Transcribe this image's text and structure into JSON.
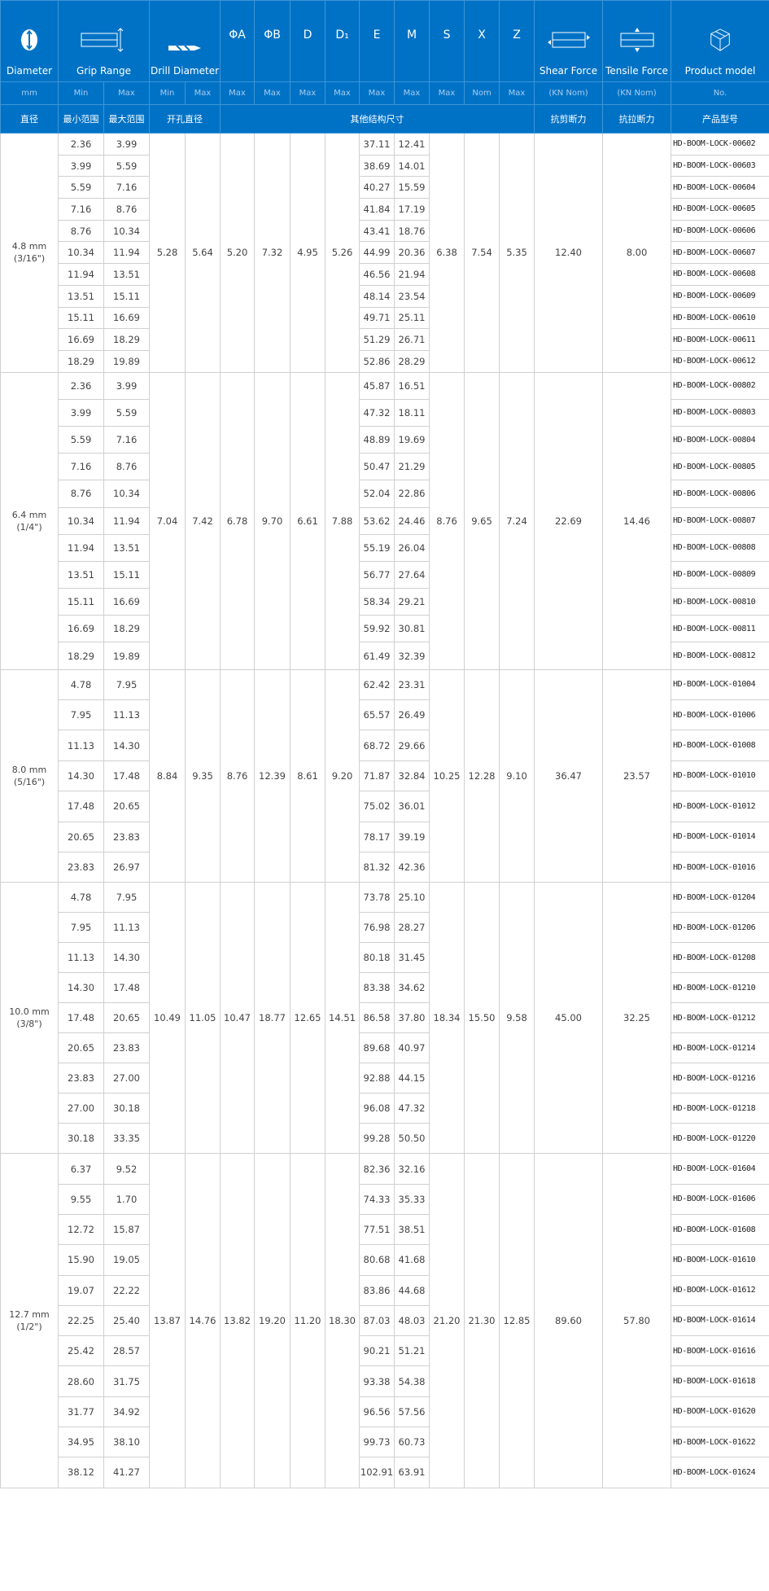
{
  "header": {
    "diameter": "Diameter",
    "diameter_unit": "mm",
    "diameter_cn": "直径",
    "grip_range": "Grip Range",
    "grip_min": "Min",
    "grip_max": "Max",
    "grip_min_cn": "最小范围",
    "grip_max_cn": "最大范围",
    "drill": "Drill Diameter",
    "drill_min": "Min",
    "drill_max": "Max",
    "drill_cn": "开孔直径",
    "dims": [
      {
        "label": "ΦA",
        "sub": "Max"
      },
      {
        "label": "ΦB",
        "sub": "Max"
      },
      {
        "label": "D",
        "sub": "Max"
      },
      {
        "label": "D₁",
        "sub": "Max"
      },
      {
        "label": "E",
        "sub": "Max"
      },
      {
        "label": "M",
        "sub": "Max"
      },
      {
        "label": "S",
        "sub": "Max"
      },
      {
        "label": "X",
        "sub": "Nom"
      },
      {
        "label": "Z",
        "sub": "Max"
      }
    ],
    "dims_cn": "其他结构尺寸",
    "shear": "Shear Force",
    "shear_unit": "(KN Nom)",
    "shear_cn": "抗剪断力",
    "tensile": "Tensile Force",
    "tensile_unit": "(KN Nom)",
    "tensile_cn": "抗拉断力",
    "model": "Product model",
    "model_unit": "No.",
    "model_cn": "产品型号",
    "header_color": "#0072c6"
  },
  "groups": [
    {
      "diameter": "4.8 mm",
      "inch": "(3/16\")",
      "drill_min": "5.28",
      "drill_max": "5.64",
      "A": "5.20",
      "B": "7.32",
      "D": "4.95",
      "D1": "5.26",
      "S": "6.38",
      "X": "7.54",
      "Z": "5.35",
      "shear": "12.40",
      "tensile": "8.00",
      "rows": [
        [
          "2.36",
          "3.99",
          "37.11",
          "12.41",
          "HD-BOOM-LOCK-00602"
        ],
        [
          "3.99",
          "5.59",
          "38.69",
          "14.01",
          "HD-BOOM-LOCK-00603"
        ],
        [
          "5.59",
          "7.16",
          "40.27",
          "15.59",
          "HD-BOOM-LOCK-00604"
        ],
        [
          "7.16",
          "8.76",
          "41.84",
          "17.19",
          "HD-BOOM-LOCK-00605"
        ],
        [
          "8.76",
          "10.34",
          "43.41",
          "18.76",
          "HD-BOOM-LOCK-00606"
        ],
        [
          "10.34",
          "11.94",
          "44.99",
          "20.36",
          "HD-BOOM-LOCK-00607"
        ],
        [
          "11.94",
          "13.51",
          "46.56",
          "21.94",
          "HD-BOOM-LOCK-00608"
        ],
        [
          "13.51",
          "15.11",
          "48.14",
          "23.54",
          "HD-BOOM-LOCK-00609"
        ],
        [
          "15.11",
          "16.69",
          "49.71",
          "25.11",
          "HD-BOOM-LOCK-00610"
        ],
        [
          "16.69",
          "18.29",
          "51.29",
          "26.71",
          "HD-BOOM-LOCK-00611"
        ],
        [
          "18.29",
          "19.89",
          "52.86",
          "28.29",
          "HD-BOOM-LOCK-00612"
        ]
      ]
    },
    {
      "diameter": "6.4 mm",
      "inch": "(1/4\")",
      "drill_min": "7.04",
      "drill_max": "7.42",
      "A": "6.78",
      "B": "9.70",
      "D": "6.61",
      "D1": "7.88",
      "S": "8.76",
      "X": "9.65",
      "Z": "7.24",
      "shear": "22.69",
      "tensile": "14.46",
      "rows": [
        [
          "2.36",
          "3.99",
          "45.87",
          "16.51",
          "HD-BOOM-LOCK-00802"
        ],
        [
          "3.99",
          "5.59",
          "47.32",
          "18.11",
          "HD-BOOM-LOCK-00803"
        ],
        [
          "5.59",
          "7.16",
          "48.89",
          "19.69",
          "HD-BOOM-LOCK-00804"
        ],
        [
          "7.16",
          "8.76",
          "50.47",
          "21.29",
          "HD-BOOM-LOCK-00805"
        ],
        [
          "8.76",
          "10.34",
          "52.04",
          "22.86",
          "HD-BOOM-LOCK-00806"
        ],
        [
          "10.34",
          "11.94",
          "53.62",
          "24.46",
          "HD-BOOM-LOCK-00807"
        ],
        [
          "11.94",
          "13.51",
          "55.19",
          "26.04",
          "HD-BOOM-LOCK-00808"
        ],
        [
          "13.51",
          "15.11",
          "56.77",
          "27.64",
          "HD-BOOM-LOCK-00809"
        ],
        [
          "15.11",
          "16.69",
          "58.34",
          "29.21",
          "HD-BOOM-LOCK-00810"
        ],
        [
          "16.69",
          "18.29",
          "59.92",
          "30.81",
          "HD-BOOM-LOCK-00811"
        ],
        [
          "18.29",
          "19.89",
          "61.49",
          "32.39",
          "HD-BOOM-LOCK-00812"
        ]
      ]
    },
    {
      "diameter": "8.0 mm",
      "inch": "(5/16\")",
      "drill_min": "8.84",
      "drill_max": "9.35",
      "A": "8.76",
      "B": "12.39",
      "D": "8.61",
      "D1": "9.20",
      "S": "10.25",
      "X": "12.28",
      "Z": "9.10",
      "shear": "36.47",
      "tensile": "23.57",
      "rows": [
        [
          "4.78",
          "7.95",
          "62.42",
          "23.31",
          "HD-BOOM-LOCK-01004"
        ],
        [
          "7.95",
          "11.13",
          "65.57",
          "26.49",
          "HD-BOOM-LOCK-01006"
        ],
        [
          "11.13",
          "14.30",
          "68.72",
          "29.66",
          "HD-BOOM-LOCK-01008"
        ],
        [
          "14.30",
          "17.48",
          "71.87",
          "32.84",
          "HD-BOOM-LOCK-01010"
        ],
        [
          "17.48",
          "20.65",
          "75.02",
          "36.01",
          "HD-BOOM-LOCK-01012"
        ],
        [
          "20.65",
          "23.83",
          "78.17",
          "39.19",
          "HD-BOOM-LOCK-01014"
        ],
        [
          "23.83",
          "26.97",
          "81.32",
          "42.36",
          "HD-BOOM-LOCK-01016"
        ]
      ]
    },
    {
      "diameter": "10.0 mm",
      "inch": "(3/8\")",
      "drill_min": "10.49",
      "drill_max": "11.05",
      "A": "10.47",
      "B": "18.77",
      "D": "12.65",
      "D1": "14.51",
      "S": "18.34",
      "X": "15.50",
      "Z": "9.58",
      "shear": "45.00",
      "tensile": "32.25",
      "rows": [
        [
          "4.78",
          "7.95",
          "73.78",
          "25.10",
          "HD-BOOM-LOCK-01204"
        ],
        [
          "7.95",
          "11.13",
          "76.98",
          "28.27",
          "HD-BOOM-LOCK-01206"
        ],
        [
          "11.13",
          "14.30",
          "80.18",
          "31.45",
          "HD-BOOM-LOCK-01208"
        ],
        [
          "14.30",
          "17.48",
          "83.38",
          "34.62",
          "HD-BOOM-LOCK-01210"
        ],
        [
          "17.48",
          "20.65",
          "86.58",
          "37.80",
          "HD-BOOM-LOCK-01212"
        ],
        [
          "20.65",
          "23.83",
          "89.68",
          "40.97",
          "HD-BOOM-LOCK-01214"
        ],
        [
          "23.83",
          "27.00",
          "92.88",
          "44.15",
          "HD-BOOM-LOCK-01216"
        ],
        [
          "27.00",
          "30.18",
          "96.08",
          "47.32",
          "HD-BOOM-LOCK-01218"
        ],
        [
          "30.18",
          "33.35",
          "99.28",
          "50.50",
          "HD-BOOM-LOCK-01220"
        ]
      ]
    },
    {
      "diameter": "12.7 mm",
      "inch": "(1/2\")",
      "drill_min": "13.87",
      "drill_max": "14.76",
      "A": "13.82",
      "B": "19.20",
      "D": "11.20",
      "D1": "18.30",
      "S": "21.20",
      "X": "21.30",
      "Z": "12.85",
      "shear": "89.60",
      "tensile": "57.80",
      "rows": [
        [
          "6.37",
          "9.52",
          "82.36",
          "32.16",
          "HD-BOOM-LOCK-01604"
        ],
        [
          "9.55",
          "1.70",
          "74.33",
          "35.33",
          "HD-BOOM-LOCK-01606"
        ],
        [
          "12.72",
          "15.87",
          "77.51",
          "38.51",
          "HD-BOOM-LOCK-01608"
        ],
        [
          "15.90",
          "19.05",
          "80.68",
          "41.68",
          "HD-BOOM-LOCK-01610"
        ],
        [
          "19.07",
          "22.22",
          "83.86",
          "44.68",
          "HD-BOOM-LOCK-01612"
        ],
        [
          "22.25",
          "25.40",
          "87.03",
          "48.03",
          "HD-BOOM-LOCK-01614"
        ],
        [
          "25.42",
          "28.57",
          "90.21",
          "51.21",
          "HD-BOOM-LOCK-01616"
        ],
        [
          "28.60",
          "31.75",
          "93.38",
          "54.38",
          "HD-BOOM-LOCK-01618"
        ],
        [
          "31.77",
          "34.92",
          "96.56",
          "57.56",
          "HD-BOOM-LOCK-01620"
        ],
        [
          "34.95",
          "38.10",
          "99.73",
          "60.73",
          "HD-BOOM-LOCK-01622"
        ],
        [
          "38.12",
          "41.27",
          "102.91",
          "63.91",
          "HD-BOOM-LOCK-01624"
        ]
      ]
    }
  ]
}
